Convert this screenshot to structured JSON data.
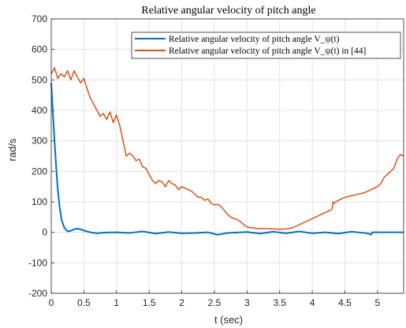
{
  "chart_data": {
    "type": "line",
    "title": "Relative angular velocity of pitch angle",
    "xlabel": "t (sec)",
    "ylabel": "rad/s",
    "xlim": [
      0,
      5.4
    ],
    "ylim": [
      -200,
      700
    ],
    "x_ticks": [
      "0",
      "0.5",
      "1",
      "1.5",
      "2",
      "2.5",
      "3",
      "3.5",
      "4",
      "4.5",
      "5"
    ],
    "y_ticks": [
      "-200",
      "-100",
      "0",
      "100",
      "200",
      "300",
      "400",
      "500",
      "600",
      "700"
    ],
    "grid": true,
    "legend_position": "top-right",
    "series": [
      {
        "name": "Relative angular velocity of pitch angle V_ψ(t)",
        "color": "#0072BD",
        "x": [
          0,
          0.02,
          0.05,
          0.08,
          0.1,
          0.13,
          0.16,
          0.2,
          0.25,
          0.3,
          0.35,
          0.4,
          0.45,
          0.5,
          0.6,
          0.7,
          0.8,
          1.0,
          1.2,
          1.4,
          1.6,
          1.8,
          2.0,
          2.2,
          2.4,
          2.55,
          2.7,
          3.0,
          3.2,
          3.4,
          3.6,
          3.8,
          4.0,
          4.2,
          4.4,
          4.6,
          4.8,
          4.88,
          4.9,
          4.92,
          5.0,
          5.2,
          5.4
        ],
        "y": [
          490,
          410,
          300,
          200,
          140,
          80,
          40,
          15,
          3,
          5,
          10,
          12,
          10,
          6,
          0,
          -3,
          -1,
          0,
          -2,
          3,
          -4,
          1,
          -3,
          -2,
          0,
          -8,
          -2,
          1,
          -4,
          2,
          -3,
          3,
          -3,
          0,
          -4,
          2,
          -2,
          -5,
          -8,
          0,
          0,
          0,
          0
        ]
      },
      {
        "name": "Relative angular velocity of pitch angle V_ψ(t) in [44]",
        "color": "#D95319",
        "x": [
          0,
          0.05,
          0.1,
          0.15,
          0.2,
          0.25,
          0.3,
          0.35,
          0.4,
          0.45,
          0.5,
          0.55,
          0.6,
          0.65,
          0.7,
          0.75,
          0.8,
          0.85,
          0.9,
          0.95,
          1.0,
          1.05,
          1.1,
          1.15,
          1.2,
          1.25,
          1.3,
          1.35,
          1.4,
          1.45,
          1.5,
          1.55,
          1.6,
          1.65,
          1.7,
          1.75,
          1.8,
          1.85,
          1.9,
          1.95,
          2.0,
          2.05,
          2.1,
          2.15,
          2.2,
          2.25,
          2.3,
          2.35,
          2.4,
          2.45,
          2.5,
          2.55,
          2.6,
          2.65,
          2.7,
          2.75,
          2.8,
          2.85,
          2.9,
          2.95,
          3.0,
          3.05,
          3.1,
          3.15,
          3.2,
          3.3,
          3.4,
          3.5,
          3.6,
          3.7,
          3.8,
          3.9,
          4.0,
          4.1,
          4.2,
          4.3,
          4.32,
          4.33,
          4.4,
          4.5,
          4.6,
          4.7,
          4.8,
          4.9,
          5.0,
          5.05,
          5.1,
          5.15,
          5.2,
          5.25,
          5.3,
          5.35,
          5.4
        ],
        "y": [
          520,
          540,
          505,
          520,
          510,
          530,
          500,
          530,
          510,
          490,
          505,
          470,
          440,
          420,
          400,
          380,
          390,
          370,
          395,
          360,
          385,
          350,
          300,
          250,
          260,
          250,
          235,
          240,
          215,
          210,
          190,
          170,
          160,
          170,
          165,
          150,
          170,
          160,
          155,
          140,
          150,
          145,
          140,
          135,
          125,
          115,
          115,
          105,
          110,
          95,
          90,
          92,
          85,
          72,
          60,
          50,
          45,
          42,
          35,
          25,
          18,
          15,
          15,
          12,
          12,
          12,
          11,
          10,
          11,
          15,
          25,
          35,
          45,
          55,
          65,
          75,
          100,
          95,
          105,
          115,
          120,
          125,
          130,
          140,
          150,
          160,
          180,
          190,
          200,
          210,
          240,
          255,
          250
        ]
      }
    ]
  }
}
